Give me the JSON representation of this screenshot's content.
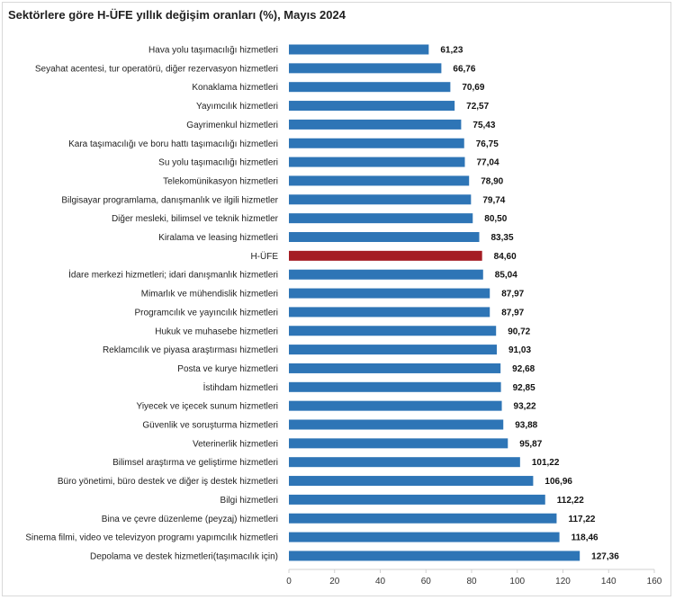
{
  "chart_data": {
    "type": "bar",
    "orientation": "horizontal",
    "title": "Sektörlere göre H-ÜFE yıllık değişim oranları (%), Mayıs 2024",
    "xlabel": "",
    "ylabel": "",
    "xlim": [
      0,
      160
    ],
    "xticks": [
      0,
      20,
      40,
      60,
      80,
      100,
      120,
      140,
      160
    ],
    "grid": false,
    "colors": {
      "default": "#2e75b6",
      "highlight": "#a51d24"
    },
    "highlight_category": "H-ÜFE",
    "categories": [
      "Hava yolu taşımacılığı hizmetleri",
      "Seyahat acentesi, tur operatörü, diğer rezervasyon hizmetleri",
      "Konaklama hizmetleri",
      "Yayımcılık hizmetleri",
      "Gayrimenkul hizmetleri",
      "Kara taşımacılığı ve boru hattı taşımacılığı hizmetleri",
      "Su yolu taşımacılığı hizmetleri",
      "Telekomünikasyon hizmetleri",
      "Bilgisayar programlama, danışmanlık ve ilgili hizmetler",
      "Diğer mesleki, bilimsel ve teknik hizmetler",
      "Kiralama ve leasing hizmetleri",
      "H-ÜFE",
      "İdare merkezi hizmetleri; idari danışmanlık hizmetleri",
      "Mimarlık ve mühendislik hizmetleri",
      "Programcılık ve yayıncılık hizmetleri",
      "Hukuk ve muhasebe hizmetleri",
      "Reklamcılık ve piyasa araştırması hizmetleri",
      "Posta ve kurye hizmetleri",
      "İstihdam hizmetleri",
      "Yiyecek ve içecek sunum hizmetleri",
      "Güvenlik ve soruşturma hizmetleri",
      "Veterinerlik hizmetleri",
      "Bilimsel araştırma ve geliştirme hizmetleri",
      "Büro yönetimi, büro destek ve diğer iş destek hizmetleri",
      "Bilgi hizmetleri",
      "Bina ve çevre düzenleme (peyzaj) hizmetleri",
      "Sinema filmi, video ve televizyon programı yapımcılık hizmetleri",
      "Depolama ve destek hizmetleri(taşımacılık için)"
    ],
    "values": [
      61.23,
      66.76,
      70.69,
      72.57,
      75.43,
      76.75,
      77.04,
      78.9,
      79.74,
      80.5,
      83.35,
      84.6,
      85.04,
      87.97,
      87.97,
      90.72,
      91.03,
      92.68,
      92.85,
      93.22,
      93.88,
      95.87,
      101.22,
      106.96,
      112.22,
      117.22,
      118.46,
      127.36
    ],
    "value_labels": [
      "61,23",
      "66,76",
      "70,69",
      "72,57",
      "75,43",
      "76,75",
      "77,04",
      "78,90",
      "79,74",
      "80,50",
      "83,35",
      "84,60",
      "85,04",
      "87,97",
      "87,97",
      "90,72",
      "91,03",
      "92,68",
      "92,85",
      "93,22",
      "93,88",
      "95,87",
      "101,22",
      "106,96",
      "112,22",
      "117,22",
      "118,46",
      "127,36"
    ]
  }
}
